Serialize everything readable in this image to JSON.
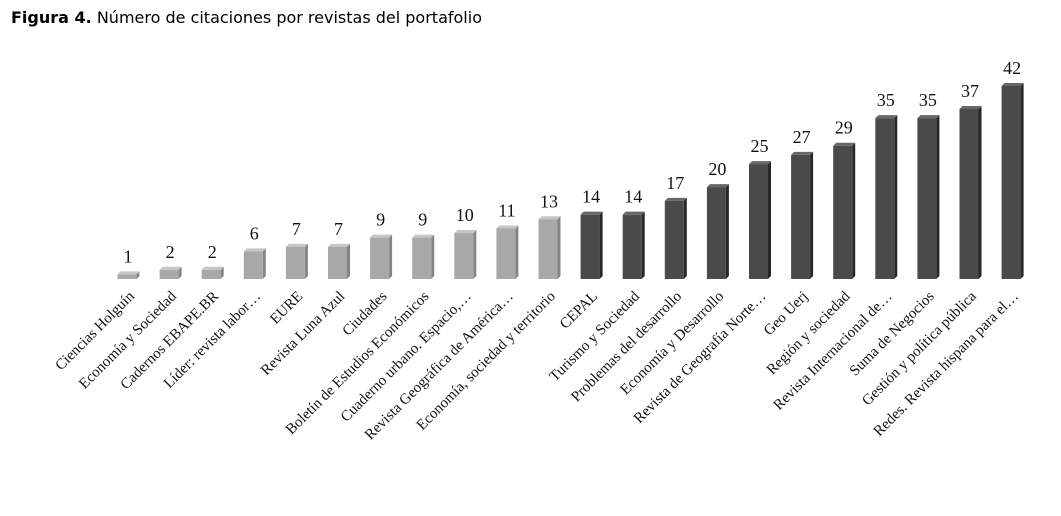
{
  "caption": {
    "prefix": "Figura 4.",
    "text": "Número de citaciones por revistas del portafolio"
  },
  "colors": {
    "light_bar": "#a8a8a8",
    "dark_bar": "#4a4a4a"
  },
  "chart_data": {
    "type": "bar",
    "title": "",
    "xlabel": "",
    "ylabel": "",
    "ylim": [
      0,
      42
    ],
    "grid": false,
    "categories": [
      "Ciencias Holguín",
      "Economía y Sociedad",
      "Cadernos EBAPE.BR",
      "Líder: revista labor…",
      "EURE",
      "Revista Luna Azul",
      "Ciudades",
      "Boletín de Estudios Económicos",
      "Cuaderno urbano. Espacio,…",
      "Revista Geográfica de América…",
      "Economía, sociedad y territorio",
      "CEPAL",
      "Turismo y Sociedad",
      "Problemas del desarrollo",
      "Economía y Desarrollo",
      "Revista de Geografía Norte…",
      "Geo Uerj",
      "Región y sociedad",
      "Revista Internacional de…",
      "Suma de Negocios",
      "Gestión y política pública",
      "Redes. Revista hispana para el…"
    ],
    "values": [
      1,
      2,
      2,
      6,
      7,
      7,
      9,
      9,
      10,
      11,
      13,
      14,
      14,
      17,
      20,
      25,
      27,
      29,
      35,
      35,
      37,
      42
    ],
    "shade": [
      "light",
      "light",
      "light",
      "light",
      "light",
      "light",
      "light",
      "light",
      "light",
      "light",
      "light",
      "dark",
      "dark",
      "dark",
      "dark",
      "dark",
      "dark",
      "dark",
      "dark",
      "dark",
      "dark",
      "dark"
    ]
  }
}
